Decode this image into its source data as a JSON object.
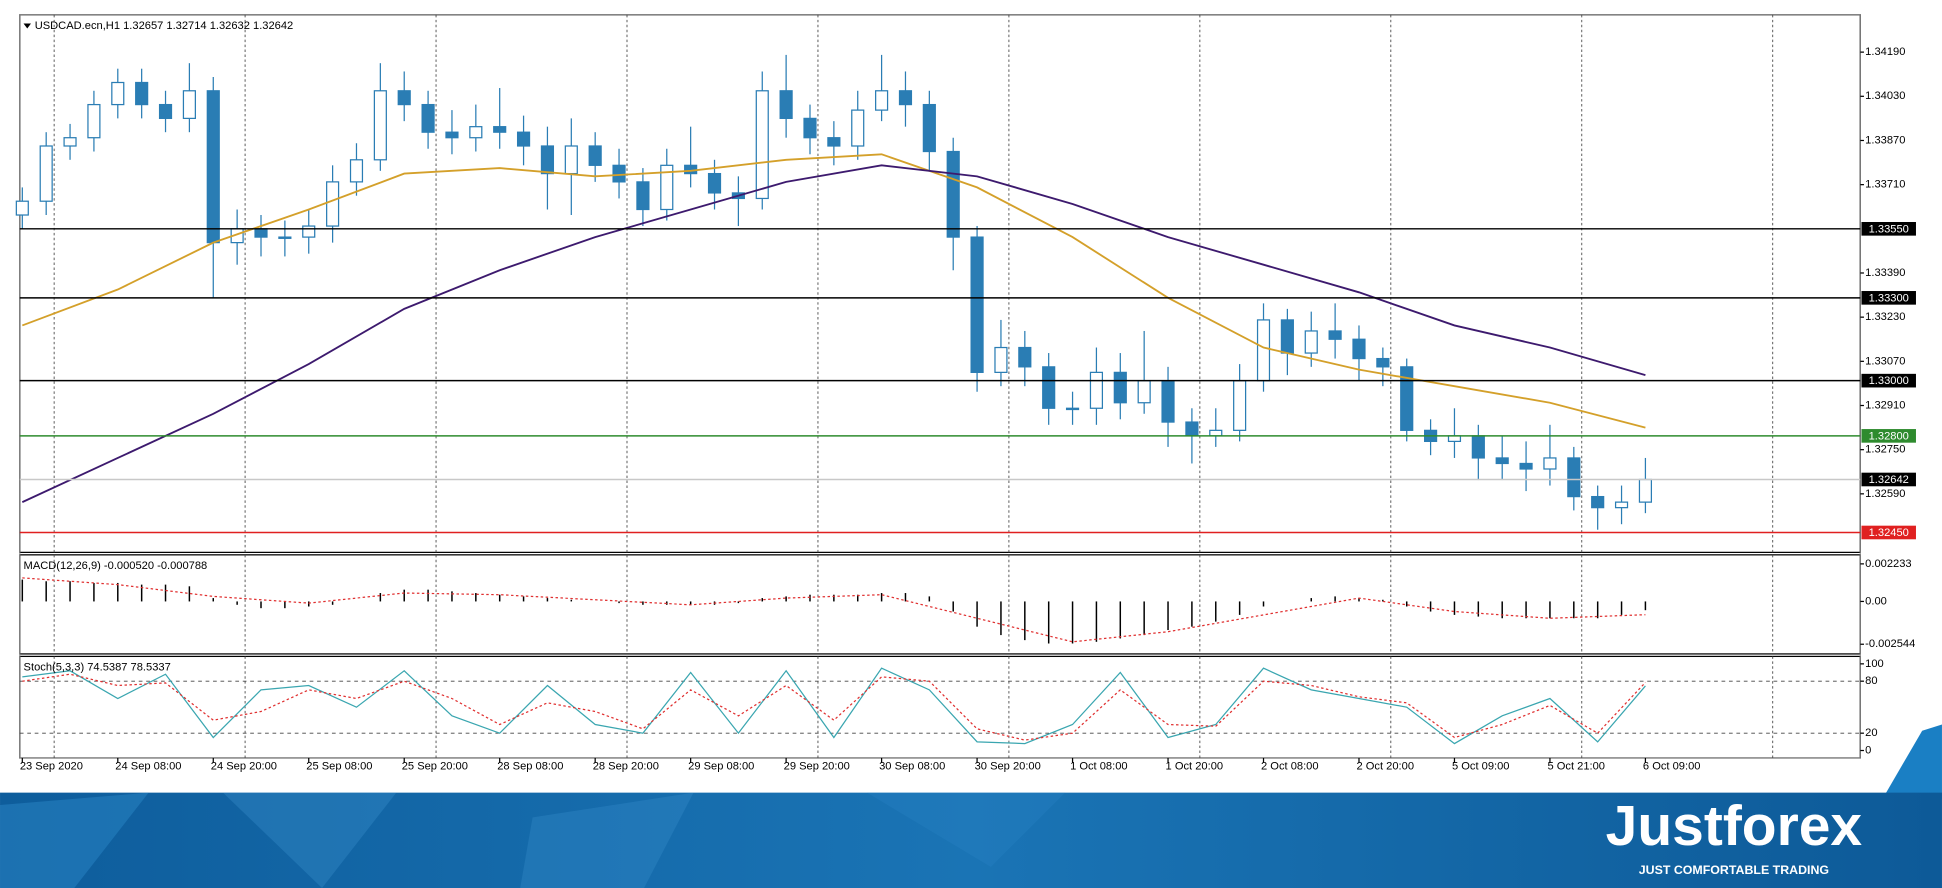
{
  "chart_data": [
    {
      "type": "candlestick",
      "title": "USDCAD.ecn,H1 1.32657 1.32714 1.32632 1.32642",
      "color": "#2a7db4",
      "x": [
        0,
        3,
        6,
        9,
        12,
        15,
        18,
        21,
        24,
        27,
        30,
        33,
        36,
        39,
        42,
        45,
        48,
        51,
        54,
        57,
        60,
        63,
        66,
        69,
        72,
        75,
        78,
        81,
        84,
        87,
        90,
        93,
        96,
        99,
        102,
        105,
        108,
        111,
        114,
        117,
        120,
        123,
        126,
        129,
        132,
        135,
        138,
        141,
        144,
        147,
        150,
        153,
        156,
        159,
        162,
        165,
        168,
        171,
        174,
        177,
        180,
        183,
        186,
        189,
        192,
        195,
        198,
        201,
        204
      ],
      "open": [
        1.336,
        1.3365,
        1.3385,
        1.3388,
        1.34,
        1.3408,
        1.34,
        1.3395,
        1.3405,
        1.335,
        1.3355,
        1.3352,
        1.3352,
        1.3356,
        1.3372,
        1.338,
        1.3405,
        1.34,
        1.339,
        1.3388,
        1.3392,
        1.339,
        1.3385,
        1.3375,
        1.3385,
        1.3378,
        1.3372,
        1.3362,
        1.3378,
        1.3375,
        1.3368,
        1.3366,
        1.3405,
        1.3395,
        1.3388,
        1.3385,
        1.3398,
        1.3405,
        1.34,
        1.3383,
        1.3352,
        1.3303,
        1.3312,
        1.3305,
        1.329,
        1.329,
        1.3303,
        1.3292,
        1.33,
        1.3285,
        1.328,
        1.3282,
        1.33,
        1.3322,
        1.331,
        1.3318,
        1.3315,
        1.3308,
        1.3305,
        1.3282,
        1.3278,
        1.328,
        1.3272,
        1.327,
        1.3268,
        1.3272,
        1.3258,
        1.3254,
        1.3256
      ],
      "high": [
        1.337,
        1.339,
        1.3393,
        1.3405,
        1.3413,
        1.3413,
        1.3405,
        1.3415,
        1.341,
        1.3362,
        1.336,
        1.3358,
        1.3362,
        1.3378,
        1.3386,
        1.3415,
        1.3412,
        1.3405,
        1.3398,
        1.34,
        1.3406,
        1.3396,
        1.3392,
        1.3395,
        1.339,
        1.3384,
        1.3377,
        1.3384,
        1.3392,
        1.338,
        1.3374,
        1.3412,
        1.3418,
        1.34,
        1.3394,
        1.3405,
        1.3418,
        1.3412,
        1.3405,
        1.3388,
        1.3356,
        1.3322,
        1.3318,
        1.331,
        1.3296,
        1.3312,
        1.331,
        1.3318,
        1.3305,
        1.329,
        1.329,
        1.3306,
        1.3328,
        1.3326,
        1.3325,
        1.3328,
        1.332,
        1.3312,
        1.3308,
        1.3286,
        1.329,
        1.3284,
        1.328,
        1.3278,
        1.3284,
        1.3276,
        1.3262,
        1.3262,
        1.3272
      ],
      "low": [
        1.3355,
        1.336,
        1.338,
        1.3383,
        1.3395,
        1.3395,
        1.339,
        1.339,
        1.333,
        1.3342,
        1.3345,
        1.3345,
        1.3346,
        1.335,
        1.3367,
        1.3376,
        1.3394,
        1.3384,
        1.3382,
        1.3383,
        1.3384,
        1.3378,
        1.3362,
        1.336,
        1.3372,
        1.3366,
        1.3356,
        1.3358,
        1.337,
        1.3362,
        1.3356,
        1.3362,
        1.3388,
        1.3382,
        1.3378,
        1.338,
        1.3394,
        1.3392,
        1.3376,
        1.334,
        1.3296,
        1.3298,
        1.3298,
        1.3284,
        1.3284,
        1.3284,
        1.3286,
        1.3288,
        1.3276,
        1.327,
        1.3276,
        1.3278,
        1.3296,
        1.3302,
        1.3305,
        1.3308,
        1.33,
        1.3298,
        1.3278,
        1.3273,
        1.3272,
        1.3264,
        1.3264,
        1.326,
        1.3262,
        1.3253,
        1.3246,
        1.3248,
        1.3252
      ],
      "close": [
        1.3365,
        1.3385,
        1.3388,
        1.34,
        1.3408,
        1.34,
        1.3395,
        1.3405,
        1.335,
        1.3355,
        1.3352,
        1.3352,
        1.3356,
        1.3372,
        1.338,
        1.3405,
        1.34,
        1.339,
        1.3388,
        1.3392,
        1.339,
        1.3385,
        1.3375,
        1.3385,
        1.3378,
        1.3372,
        1.3362,
        1.3378,
        1.3375,
        1.3368,
        1.3366,
        1.3405,
        1.3395,
        1.3388,
        1.3385,
        1.3398,
        1.3405,
        1.34,
        1.3383,
        1.3352,
        1.3303,
        1.3312,
        1.3305,
        1.329,
        1.329,
        1.3303,
        1.3292,
        1.33,
        1.3285,
        1.328,
        1.3282,
        1.33,
        1.3322,
        1.331,
        1.3318,
        1.3315,
        1.3308,
        1.3305,
        1.3282,
        1.3278,
        1.328,
        1.3272,
        1.327,
        1.3268,
        1.3272,
        1.3258,
        1.3254,
        1.3256,
        1.32642
      ],
      "overlays": [
        {
          "color": "#d4a02a",
          "x": [
            0,
            12,
            24,
            36,
            48,
            60,
            72,
            84,
            96,
            108,
            120,
            132,
            144,
            156,
            168,
            180,
            192,
            204
          ],
          "values": [
            1.332,
            1.3333,
            1.335,
            1.3362,
            1.3375,
            1.3377,
            1.3374,
            1.3376,
            1.338,
            1.3382,
            1.337,
            1.3352,
            1.333,
            1.3312,
            1.3304,
            1.3298,
            1.3292,
            1.3283
          ]
        },
        {
          "color": "#3d1a6e",
          "x": [
            0,
            12,
            24,
            36,
            48,
            60,
            72,
            84,
            96,
            108,
            120,
            132,
            144,
            156,
            168,
            180,
            192,
            204
          ],
          "values": [
            1.3256,
            1.3272,
            1.3288,
            1.3306,
            1.3326,
            1.334,
            1.3352,
            1.3362,
            1.3372,
            1.3378,
            1.3374,
            1.3364,
            1.3352,
            1.3342,
            1.3332,
            1.332,
            1.3312,
            1.3302
          ]
        }
      ],
      "levels": [
        {
          "value": 1.3355,
          "label": "1.33550",
          "color": "#000000"
        },
        {
          "value": 1.333,
          "label": "1.33300",
          "color": "#000000"
        },
        {
          "value": 1.33,
          "label": "1.33000",
          "color": "#000000"
        },
        {
          "value": 1.328,
          "label": "1.32800",
          "color": "#2e8b2e"
        },
        {
          "value": 1.32642,
          "label": "1.32642",
          "color": "#000000",
          "line_color": "#c8c8c8"
        },
        {
          "value": 1.3245,
          "label": "1.32450",
          "color": "#e02020"
        }
      ],
      "xlim": [
        0,
        231
      ],
      "xticks": [
        {
          "value": 0,
          "label": "23 Sep 2020"
        },
        {
          "value": 12,
          "label": "24 Sep 08:00"
        },
        {
          "value": 24,
          "label": "24 Sep 20:00"
        },
        {
          "value": 36,
          "label": "25 Sep 08:00"
        },
        {
          "value": 48,
          "label": "25 Sep 20:00"
        },
        {
          "value": 60,
          "label": "28 Sep 08:00"
        },
        {
          "value": 72,
          "label": "28 Sep 20:00"
        },
        {
          "value": 84,
          "label": "29 Sep 08:00"
        },
        {
          "value": 96,
          "label": "29 Sep 20:00"
        },
        {
          "value": 108,
          "label": "30 Sep 08:00"
        },
        {
          "value": 120,
          "label": "30 Sep 20:00"
        },
        {
          "value": 132,
          "label": "1 Oct 08:00"
        },
        {
          "value": 144,
          "label": "1 Oct 20:00"
        },
        {
          "value": 156,
          "label": "2 Oct 08:00"
        },
        {
          "value": 168,
          "label": "2 Oct 20:00"
        },
        {
          "value": 180,
          "label": "5 Oct 09:00"
        },
        {
          "value": 192,
          "label": "5 Oct 21:00"
        },
        {
          "value": 204,
          "label": "6 Oct 09:00"
        }
      ],
      "x_gridlines": [
        4,
        28,
        52,
        76,
        100,
        124,
        148,
        172,
        196,
        220
      ],
      "ylim": [
        1.32378,
        1.34325
      ],
      "yticks": [
        {
          "value": 1.3419,
          "label": "1.34190"
        },
        {
          "value": 1.3403,
          "label": "1.34030"
        },
        {
          "value": 1.3387,
          "label": "1.33870"
        },
        {
          "value": 1.3371,
          "label": "1.33710"
        },
        {
          "value": 1.3339,
          "label": "1.33390"
        },
        {
          "value": 1.3323,
          "label": "1.33230"
        },
        {
          "value": 1.3307,
          "label": "1.33070"
        },
        {
          "value": 1.3291,
          "label": "1.32910"
        },
        {
          "value": 1.3275,
          "label": "1.32750"
        },
        {
          "value": 1.3259,
          "label": "1.32590"
        }
      ]
    },
    {
      "type": "bar",
      "title": "MACD(12,26,9) -0.000520 -0.000788",
      "color": "#000000",
      "values": [
        0.0013,
        0.0012,
        0.0012,
        0.0011,
        0.0011,
        0.001,
        0.001,
        0.0009,
        0.0002,
        -0.0002,
        -0.0004,
        -0.0004,
        -0.0003,
        -0.0002,
        0.0,
        0.0005,
        0.0007,
        0.0007,
        0.0006,
        0.0005,
        0.0004,
        0.0003,
        0.0002,
        0.0001,
        0.0,
        -0.0001,
        -0.0002,
        -0.0002,
        -0.0002,
        -0.0002,
        -0.0001,
        0.0002,
        0.0003,
        0.0004,
        0.0004,
        0.0004,
        0.0005,
        0.0005,
        0.0003,
        -0.0006,
        -0.0015,
        -0.002,
        -0.0023,
        -0.0025,
        -0.0025,
        -0.0024,
        -0.0022,
        -0.002,
        -0.0017,
        -0.0015,
        -0.0012,
        -0.0008,
        -0.0003,
        0.0,
        0.0002,
        0.0003,
        0.0002,
        0.0001,
        -0.0003,
        -0.0006,
        -0.0008,
        -0.0009,
        -0.001,
        -0.001,
        -0.001,
        -0.001,
        -0.001,
        -0.0008,
        -0.00052
      ],
      "signal": {
        "color": "#e03030",
        "x": [
          0,
          12,
          24,
          36,
          48,
          60,
          72,
          84,
          96,
          108,
          120,
          132,
          144,
          156,
          168,
          180,
          192,
          204
        ],
        "values": [
          0.0014,
          0.001,
          0.0003,
          -0.0001,
          0.0005,
          0.0004,
          0.0001,
          -0.0002,
          0.0002,
          0.0004,
          -0.001,
          -0.0024,
          -0.0018,
          -0.0008,
          0.0002,
          -0.0006,
          -0.001,
          -0.000788
        ]
      },
      "ylim": [
        -0.00312,
        0.00277
      ],
      "yticks": [
        0.002233,
        {
          "value": 0,
          "label": "0.00"
        },
        -0.002544
      ]
    },
    {
      "type": "line",
      "title": "Stoch(5,3,3) 74.5387 78.5337",
      "x": [
        0,
        6,
        12,
        18,
        24,
        30,
        36,
        42,
        48,
        54,
        60,
        66,
        72,
        78,
        84,
        90,
        96,
        102,
        108,
        114,
        120,
        126,
        132,
        138,
        144,
        150,
        156,
        162,
        168,
        174,
        180,
        186,
        192,
        198,
        204
      ],
      "series": [
        {
          "color": "#3aa6b0",
          "dash": false,
          "values": [
            85,
            92,
            60,
            88,
            15,
            70,
            75,
            50,
            92,
            40,
            20,
            75,
            30,
            20,
            90,
            20,
            92,
            15,
            95,
            70,
            10,
            8,
            30,
            90,
            15,
            30,
            95,
            70,
            60,
            50,
            8,
            40,
            60,
            10,
            74.5387
          ]
        },
        {
          "color": "#e03030",
          "dash": true,
          "values": [
            80,
            88,
            75,
            78,
            35,
            45,
            70,
            60,
            80,
            60,
            30,
            55,
            45,
            25,
            70,
            40,
            75,
            35,
            85,
            80,
            25,
            12,
            20,
            70,
            30,
            28,
            80,
            75,
            62,
            55,
            15,
            30,
            52,
            20,
            78.5337
          ]
        }
      ],
      "levels": [
        80,
        20
      ],
      "ylim": [
        -8.6,
        108.6
      ],
      "yticks": [
        100,
        80,
        20,
        0
      ]
    }
  ],
  "footer": {
    "brand": "Justforex",
    "tagline": "JUST COMFORTABLE TRADING"
  }
}
